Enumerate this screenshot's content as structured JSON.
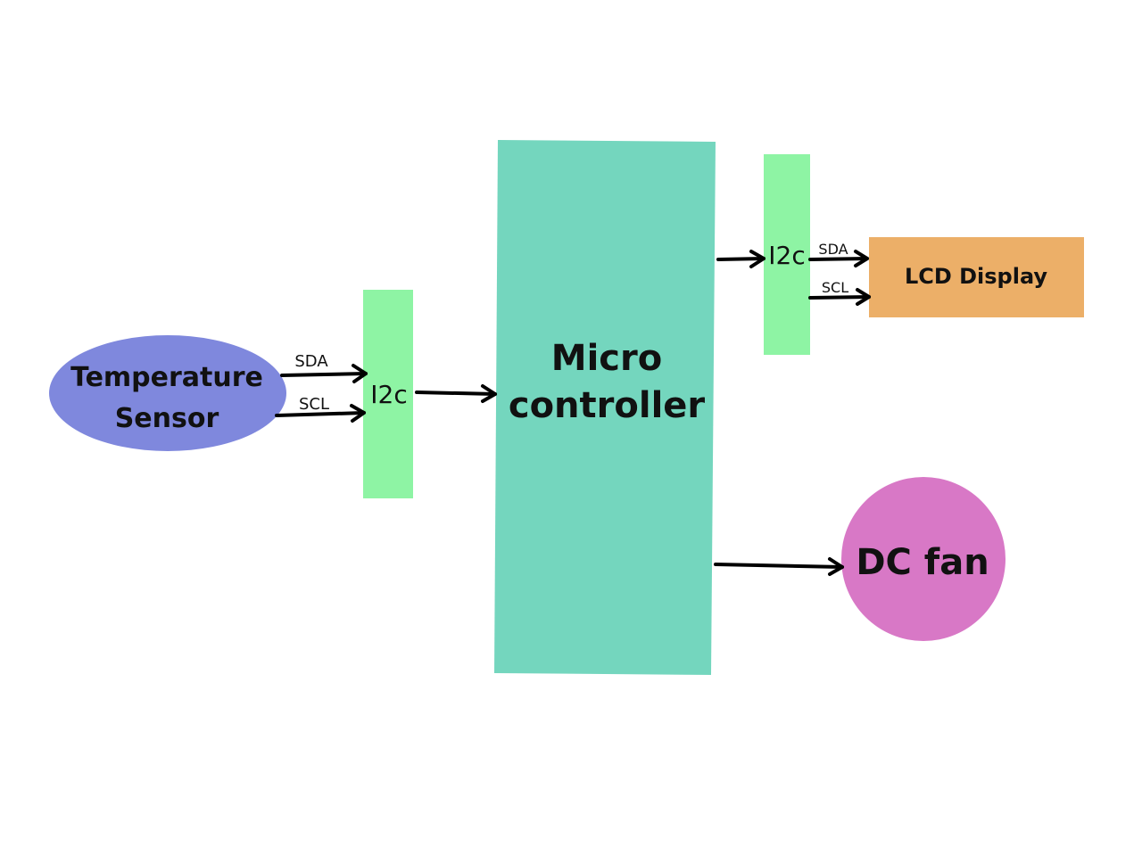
{
  "colors": {
    "sensor": "#7f88dd",
    "i2c": "#8ef4a4",
    "microcontroller": "#74d6be",
    "lcd": "#ecaf68",
    "fan": "#d878c6",
    "arrow": "#000000",
    "text": "#111111"
  },
  "nodes": {
    "sensor_line1": "Temperature",
    "sensor_line2": "Sensor",
    "i2c_left": "I2c",
    "i2c_right": "I2c",
    "mcu_line1": "Micro",
    "mcu_line2": "controller",
    "lcd": "LCD Display",
    "fan": "DC fan"
  },
  "signals": {
    "left_sda": "SDA",
    "left_scl": "SCL",
    "right_sda": "SDA",
    "right_scl": "SCL"
  }
}
